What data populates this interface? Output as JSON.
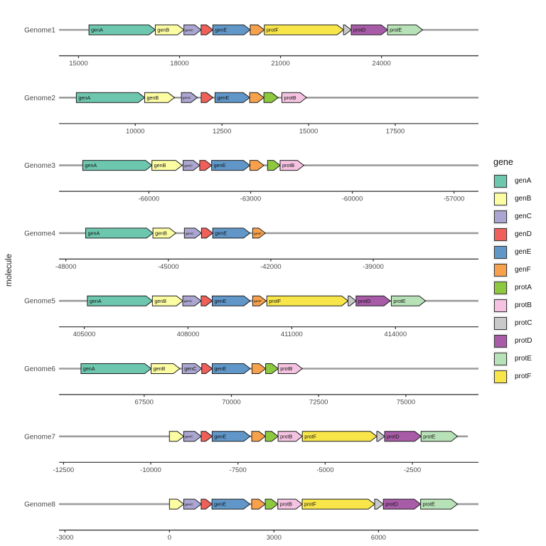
{
  "page": {
    "background": "#ffffff"
  },
  "style": {
    "molecule_line_color": "#9C9C9C",
    "axis_line_color": "#2b2b2b",
    "tick_text_color": "#4a4a4a",
    "genome_label_color": "#4a4a4a",
    "gene_outline_color": "#1f1f1f",
    "legend_key_bg": "#efefef"
  },
  "palette": {
    "genA": "#6DC7AE",
    "genB": "#FCFCA3",
    "genC": "#ABA6D1",
    "genD": "#F0605A",
    "genE": "#6097C8",
    "genF": "#F8A14D",
    "protA": "#8EC83F",
    "protB": "#F5C3E1",
    "protC": "#C9C9C9",
    "protD": "#A85CA8",
    "protE": "#B7E1B6",
    "protF": "#F8E54A"
  },
  "chart_data": {
    "type": "gene_arrow_map",
    "title": "",
    "xlabel": "",
    "ylabel": "molecule",
    "legend_title": "gene",
    "legend_entries": [
      "genA",
      "genB",
      "genC",
      "genD",
      "genE",
      "genF",
      "protA",
      "protB",
      "protC",
      "protD",
      "protE",
      "protF"
    ],
    "genomes": [
      {
        "name": "Genome1",
        "xlim": [
          14420,
          26880
        ],
        "ticks": [
          15000,
          18000,
          21000,
          24000
        ],
        "genes": [
          {
            "gene": "genA",
            "start": 15310,
            "end": 17280,
            "label": "genA"
          },
          {
            "gene": "genB",
            "start": 17280,
            "end": 18130,
            "label": "genB"
          },
          {
            "gene": "genC",
            "start": 18130,
            "end": 18640,
            "label": "genC"
          },
          {
            "gene": "genD",
            "start": 18640,
            "end": 18990,
            "label": ""
          },
          {
            "gene": "genE",
            "start": 18990,
            "end": 20100,
            "label": "genE"
          },
          {
            "gene": "genF",
            "start": 20100,
            "end": 20520,
            "label": ""
          },
          {
            "gene": "protF",
            "start": 20520,
            "end": 22870,
            "label": "protF"
          },
          {
            "gene": "protC",
            "start": 22870,
            "end": 23100,
            "label": ""
          },
          {
            "gene": "protD",
            "start": 23100,
            "end": 24180,
            "label": "protD"
          },
          {
            "gene": "protE",
            "start": 24180,
            "end": 25220,
            "label": "protE"
          }
        ]
      },
      {
        "name": "Genome2",
        "xlim": [
          7800,
          19900
        ],
        "ticks": [
          10000,
          12500,
          15000,
          17500
        ],
        "genes": [
          {
            "gene": "genA",
            "start": 8300,
            "end": 10270,
            "label": "genA"
          },
          {
            "gene": "genB",
            "start": 10270,
            "end": 11130,
            "label": "genB"
          },
          {
            "gene": "genC",
            "start": 11330,
            "end": 11790,
            "label": "genC"
          },
          {
            "gene": "genD",
            "start": 11900,
            "end": 12240,
            "label": ""
          },
          {
            "gene": "genE",
            "start": 12300,
            "end": 13300,
            "label": "genE"
          },
          {
            "gene": "genF",
            "start": 13300,
            "end": 13710,
            "label": ""
          },
          {
            "gene": "protA",
            "start": 13710,
            "end": 14120,
            "label": ""
          },
          {
            "gene": "protB",
            "start": 14230,
            "end": 14940,
            "label": "protB"
          }
        ]
      },
      {
        "name": "Genome3",
        "xlim": [
          -68650,
          -56280
        ],
        "ticks": [
          -66000,
          -63000,
          -60000,
          -57000
        ],
        "genes": [
          {
            "gene": "genA",
            "start": -67950,
            "end": -65910,
            "label": "genA"
          },
          {
            "gene": "genB",
            "start": -65910,
            "end": -65020,
            "label": "genB"
          },
          {
            "gene": "genC",
            "start": -64990,
            "end": -64500,
            "label": "genC"
          },
          {
            "gene": "genD",
            "start": -64500,
            "end": -64150,
            "label": ""
          },
          {
            "gene": "genE",
            "start": -64150,
            "end": -63020,
            "label": "genE"
          },
          {
            "gene": "genF",
            "start": -63020,
            "end": -62610,
            "label": ""
          },
          {
            "gene": "protA",
            "start": -62500,
            "end": -62130,
            "label": ""
          },
          {
            "gene": "protB",
            "start": -62130,
            "end": -61430,
            "label": "protB"
          }
        ]
      },
      {
        "name": "Genome4",
        "xlim": [
          -48200,
          -35920
        ],
        "ticks": [
          -48000,
          -45000,
          -42000,
          -39000
        ],
        "genes": [
          {
            "gene": "genA",
            "start": -47420,
            "end": -45450,
            "label": "genA"
          },
          {
            "gene": "genB",
            "start": -45450,
            "end": -44780,
            "label": "genB"
          },
          {
            "gene": "genC",
            "start": -44530,
            "end": -44030,
            "label": "genC"
          },
          {
            "gene": "genD",
            "start": -44030,
            "end": -43700,
            "label": ""
          },
          {
            "gene": "genE",
            "start": -43700,
            "end": -42610,
            "label": "genE"
          },
          {
            "gene": "genF",
            "start": -42530,
            "end": -42160,
            "label": "genF"
          }
        ]
      },
      {
        "name": "Genome5",
        "xlim": [
          404270,
          416400
        ],
        "ticks": [
          405000,
          408000,
          411000,
          414000
        ],
        "genes": [
          {
            "gene": "genA",
            "start": 405090,
            "end": 406970,
            "label": "genA"
          },
          {
            "gene": "genB",
            "start": 406970,
            "end": 407850,
            "label": "genB"
          },
          {
            "gene": "genC",
            "start": 407850,
            "end": 408380,
            "label": "genC"
          },
          {
            "gene": "genD",
            "start": 408380,
            "end": 408700,
            "label": ""
          },
          {
            "gene": "genE",
            "start": 408700,
            "end": 409800,
            "label": "genE"
          },
          {
            "gene": "genF",
            "start": 409870,
            "end": 410260,
            "label": "genF"
          },
          {
            "gene": "protF",
            "start": 410280,
            "end": 412630,
            "label": "protF"
          },
          {
            "gene": "protC",
            "start": 412630,
            "end": 412860,
            "label": ""
          },
          {
            "gene": "protD",
            "start": 412860,
            "end": 413850,
            "label": "protD"
          },
          {
            "gene": "protE",
            "start": 413880,
            "end": 414870,
            "label": "protE"
          }
        ]
      },
      {
        "name": "Genome6",
        "xlim": [
          65060,
          77080
        ],
        "ticks": [
          67500,
          70000,
          72500,
          75000
        ],
        "genes": [
          {
            "gene": "genA",
            "start": 65690,
            "end": 67700,
            "label": "genA"
          },
          {
            "gene": "genB",
            "start": 67700,
            "end": 68520,
            "label": "genB"
          },
          {
            "gene": "genC",
            "start": 68590,
            "end": 69150,
            "label": "genC"
          },
          {
            "gene": "genD",
            "start": 69150,
            "end": 69450,
            "label": ""
          },
          {
            "gene": "genE",
            "start": 69450,
            "end": 70540,
            "label": "genE"
          },
          {
            "gene": "genF",
            "start": 70590,
            "end": 70980,
            "label": ""
          },
          {
            "gene": "protA",
            "start": 70980,
            "end": 71340,
            "label": ""
          },
          {
            "gene": "protB",
            "start": 71340,
            "end": 72030,
            "label": "protB"
          }
        ]
      },
      {
        "name": "Genome7",
        "xlim": [
          -12630,
          -605
        ],
        "molecule_extent": [
          -12630,
          -910
        ],
        "ticks": [
          -12500,
          -10000,
          -7500,
          -5000,
          -2500
        ],
        "genes": [
          {
            "gene": "genB",
            "start": -9465,
            "end": -9055,
            "label": ""
          },
          {
            "gene": "genC",
            "start": -9055,
            "end": -8555,
            "label": "genC"
          },
          {
            "gene": "genD",
            "start": -8555,
            "end": -8240,
            "label": ""
          },
          {
            "gene": "genE",
            "start": -8240,
            "end": -7150,
            "label": "genE"
          },
          {
            "gene": "genF",
            "start": -7105,
            "end": -6715,
            "label": ""
          },
          {
            "gene": "protA",
            "start": -6715,
            "end": -6350,
            "label": ""
          },
          {
            "gene": "protB",
            "start": -6350,
            "end": -5655,
            "label": "protB"
          },
          {
            "gene": "protF",
            "start": -5655,
            "end": -3520,
            "label": "protF"
          },
          {
            "gene": "protC",
            "start": -3520,
            "end": -3295,
            "label": ""
          },
          {
            "gene": "protD",
            "start": -3295,
            "end": -2250,
            "label": "protD"
          },
          {
            "gene": "protE",
            "start": -2250,
            "end": -1205,
            "label": "protE"
          }
        ]
      },
      {
        "name": "Genome8",
        "xlim": [
          -3170,
          8870
        ],
        "ticks": [
          -3000,
          0,
          3000,
          6000
        ],
        "genes": [
          {
            "gene": "genB",
            "start": 0,
            "end": 410,
            "label": ""
          },
          {
            "gene": "genC",
            "start": 410,
            "end": 910,
            "label": "genC"
          },
          {
            "gene": "genD",
            "start": 910,
            "end": 1220,
            "label": ""
          },
          {
            "gene": "genE",
            "start": 1220,
            "end": 2310,
            "label": "genE"
          },
          {
            "gene": "genF",
            "start": 2360,
            "end": 2750,
            "label": ""
          },
          {
            "gene": "protA",
            "start": 2750,
            "end": 3110,
            "label": ""
          },
          {
            "gene": "protB",
            "start": 3110,
            "end": 3810,
            "label": "protB"
          },
          {
            "gene": "protF",
            "start": 3810,
            "end": 5890,
            "label": "protF"
          },
          {
            "gene": "protC",
            "start": 5890,
            "end": 6140,
            "label": ""
          },
          {
            "gene": "protD",
            "start": 6140,
            "end": 7210,
            "label": "protD"
          },
          {
            "gene": "protE",
            "start": 7210,
            "end": 8270,
            "label": "protE"
          }
        ]
      }
    ]
  }
}
